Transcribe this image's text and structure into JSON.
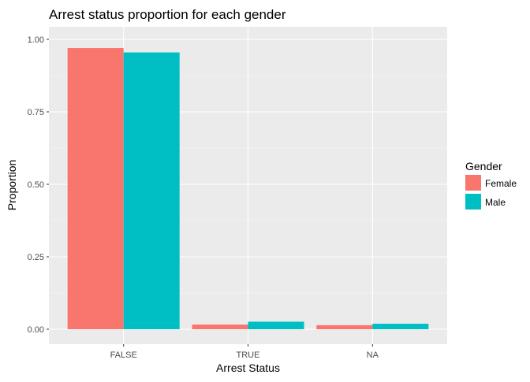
{
  "chart_data": {
    "type": "bar",
    "title": "Arrest status proportion for each gender",
    "xlabel": "Arrest Status",
    "ylabel": "Proportion",
    "categories": [
      "FALSE",
      "TRUE",
      "NA"
    ],
    "series": [
      {
        "name": "Female",
        "color": "#F8766D",
        "values": [
          0.97,
          0.016,
          0.014
        ]
      },
      {
        "name": "Male",
        "color": "#00BFC4",
        "values": [
          0.955,
          0.026,
          0.019
        ]
      }
    ],
    "ylim": [
      0,
      1.0
    ],
    "yticks": [
      0.0,
      0.25,
      0.5,
      0.75,
      1.0
    ],
    "ytick_labels": [
      "0.00",
      "0.25",
      "0.50",
      "0.75",
      "1.00"
    ],
    "legend": {
      "title": "Gender",
      "placement": "right"
    },
    "grid": true,
    "panel_background": "#EBEBEB"
  }
}
